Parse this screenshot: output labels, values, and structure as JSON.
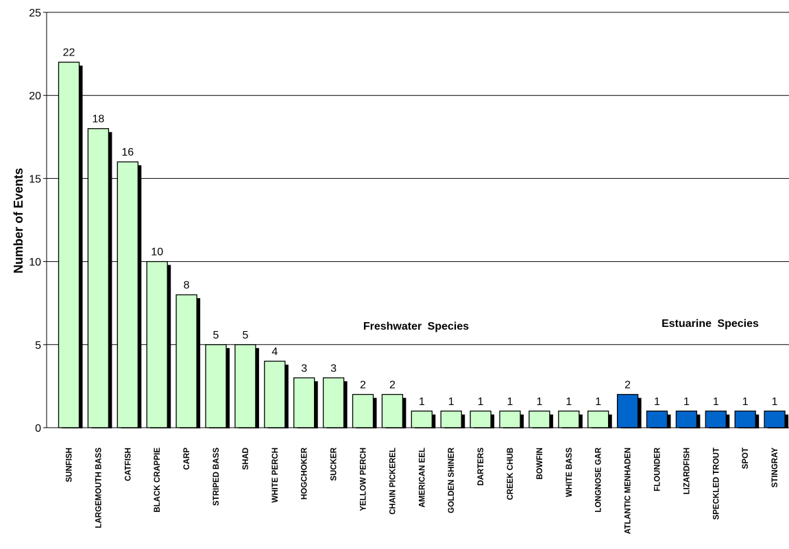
{
  "chart_data": {
    "type": "bar",
    "ylabel": "Number of Events",
    "xlabel": "",
    "ylim": [
      0,
      25
    ],
    "yticks": [
      0,
      5,
      10,
      15,
      20,
      25
    ],
    "grid": true,
    "categories": [
      "SUNFISH",
      "LARGEMOUTH BASS",
      "CATFISH",
      "BLACK CRAPPIE",
      "CARP",
      "STRIPED BASS",
      "SHAD",
      "WHITE PERCH",
      "HOGCHOKER",
      "SUCKER",
      "YELLOW PERCH",
      "CHAIN PICKEREL",
      "AMERICAN EEL",
      "GOLDEN SHINER",
      "DARTERS",
      "CREEK CHUB",
      "BOWFIN",
      "WHITE BASS",
      "LONGNOSE GAR",
      "ATLANTIC MENHADEN",
      "FLOUNDER",
      "LIZARDFISH",
      "SPECKLED TROUT",
      "SPOT",
      "STINGRAY"
    ],
    "values": [
      22,
      18,
      16,
      10,
      8,
      5,
      5,
      4,
      3,
      3,
      2,
      2,
      1,
      1,
      1,
      1,
      1,
      1,
      1,
      2,
      1,
      1,
      1,
      1,
      1
    ],
    "groups": [
      {
        "label": "Freshwater Species",
        "start": 0,
        "end": 18,
        "color": "#ccffcc"
      },
      {
        "label": "Estuarine Species",
        "start": 19,
        "end": 24,
        "color": "#0066cc"
      }
    ]
  }
}
